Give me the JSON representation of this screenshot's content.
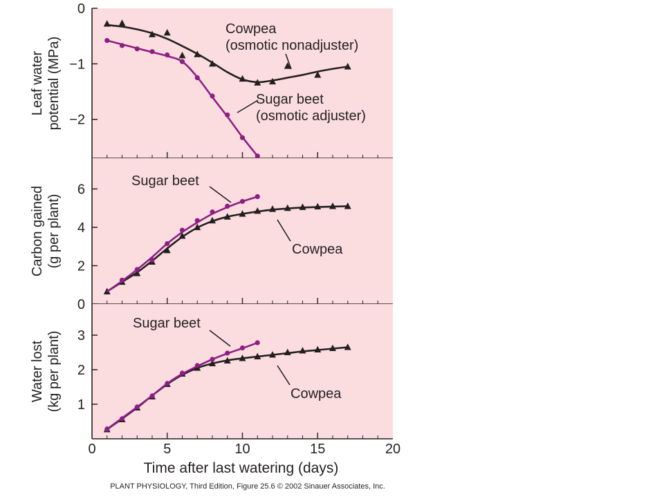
{
  "colors": {
    "panel_bg": "#fbdde0",
    "axis": "#231f20",
    "cowpea": "#231f20",
    "sugar_beet": "#8e1e84"
  },
  "credit": "PLANT PHYSIOLOGY, Third Edition, Figure 25.6  © 2002 Sinauer Associates, Inc.",
  "chart_data": [
    {
      "type": "line",
      "ylabel_lines": [
        "Leaf water",
        "potential (MPa)"
      ],
      "ylim": [
        -2.7,
        0
      ],
      "yticks": [
        0,
        -1,
        -2
      ],
      "xlim": [
        0,
        20
      ],
      "series": [
        {
          "name": "Cowpea (osmotic nonadjuster)",
          "marker": "triangle",
          "x": [
            1,
            2,
            4,
            5,
            6,
            7,
            8,
            10,
            11,
            12,
            13,
            15,
            17
          ],
          "y": [
            -0.28,
            -0.27,
            -0.47,
            -0.44,
            -0.85,
            -0.83,
            -1.0,
            -1.27,
            -1.34,
            -1.32,
            -1.04,
            -1.2,
            -1.05
          ],
          "fit_x": [
            1,
            2,
            3,
            4,
            5,
            6,
            7,
            8,
            9,
            10,
            11,
            12,
            13,
            14,
            15,
            16,
            17
          ],
          "fit_y": [
            -0.3,
            -0.33,
            -0.38,
            -0.45,
            -0.55,
            -0.68,
            -0.82,
            -0.98,
            -1.15,
            -1.28,
            -1.33,
            -1.3,
            -1.25,
            -1.2,
            -1.14,
            -1.09,
            -1.05
          ]
        },
        {
          "name": "Sugar beet (osmotic adjuster)",
          "marker": "circle",
          "x": [
            1,
            2,
            3,
            4,
            5,
            6,
            7,
            8,
            9,
            10,
            11
          ],
          "y": [
            -0.58,
            -0.67,
            -0.73,
            -0.78,
            -0.84,
            -0.96,
            -1.25,
            -1.58,
            -1.92,
            -2.33,
            -2.66
          ],
          "fit_x": [
            1,
            2,
            3,
            4,
            5,
            6,
            7,
            8,
            9,
            10,
            11
          ],
          "fit_y": [
            -0.58,
            -0.65,
            -0.72,
            -0.79,
            -0.86,
            -0.96,
            -1.24,
            -1.6,
            -1.95,
            -2.32,
            -2.66
          ]
        }
      ],
      "annotations": [
        {
          "lines": [
            "Cowpea",
            "(osmotic nonadjuster)"
          ]
        },
        {
          "lines": [
            "Sugar beet",
            "(osmotic adjuster)"
          ]
        }
      ]
    },
    {
      "type": "line",
      "ylabel_lines": [
        "Carbon gained",
        "(g per plant)"
      ],
      "ylim": [
        0,
        7.6
      ],
      "yticks": [
        0,
        2,
        4,
        6
      ],
      "xlim": [
        0,
        20
      ],
      "series": [
        {
          "name": "Cowpea",
          "marker": "triangle",
          "x": [
            1,
            2,
            3,
            4,
            5,
            6,
            7,
            8,
            9,
            10,
            11,
            12,
            13,
            14,
            15,
            16,
            17
          ],
          "y": [
            0.65,
            1.15,
            1.6,
            2.2,
            2.8,
            3.55,
            4.0,
            4.35,
            4.55,
            4.7,
            4.85,
            4.95,
            5.0,
            5.05,
            5.08,
            5.1,
            5.1
          ],
          "fit_x": [
            1,
            2,
            3,
            4,
            5,
            6,
            7,
            8,
            9,
            10,
            11,
            12,
            13,
            14,
            15,
            16,
            17
          ],
          "fit_y": [
            0.65,
            1.15,
            1.65,
            2.25,
            2.9,
            3.5,
            3.98,
            4.32,
            4.55,
            4.7,
            4.82,
            4.92,
            4.98,
            5.03,
            5.06,
            5.08,
            5.1
          ]
        },
        {
          "name": "Sugar beet",
          "marker": "circle",
          "x": [
            2,
            3,
            4,
            5,
            6,
            7,
            8,
            9,
            10,
            11
          ],
          "y": [
            1.25,
            1.8,
            2.3,
            3.15,
            3.85,
            4.35,
            4.8,
            5.1,
            5.35,
            5.6
          ],
          "fit_x": [
            1,
            2,
            3,
            4,
            5,
            6,
            7,
            8,
            9,
            10,
            11
          ],
          "fit_y": [
            0.65,
            1.2,
            1.8,
            2.45,
            3.15,
            3.75,
            4.25,
            4.7,
            5.05,
            5.35,
            5.6
          ]
        }
      ],
      "annotations": [
        {
          "lines": [
            "Sugar beet"
          ]
        },
        {
          "lines": [
            "Cowpea"
          ]
        }
      ]
    },
    {
      "type": "line",
      "ylabel_lines": [
        "Water lost",
        "(kg per plant)"
      ],
      "ylim": [
        0,
        3.9
      ],
      "yticks": [
        1,
        2,
        3
      ],
      "xlim": [
        0,
        20
      ],
      "xticks": [
        0,
        5,
        10,
        15,
        20
      ],
      "xlabel": "Time after last watering (days)",
      "series": [
        {
          "name": "Cowpea",
          "marker": "triangle",
          "x": [
            1,
            2,
            3,
            4,
            5,
            6,
            7,
            8,
            9,
            10,
            11,
            12,
            13,
            14,
            15,
            16,
            17
          ],
          "y": [
            0.27,
            0.56,
            0.9,
            1.22,
            1.58,
            1.88,
            2.05,
            2.18,
            2.26,
            2.33,
            2.38,
            2.43,
            2.5,
            2.55,
            2.58,
            2.62,
            2.65
          ],
          "fit_x": [
            1,
            2,
            3,
            4,
            5,
            6,
            7,
            8,
            9,
            10,
            11,
            12,
            13,
            14,
            15,
            16,
            17
          ],
          "fit_y": [
            0.27,
            0.58,
            0.9,
            1.25,
            1.58,
            1.85,
            2.05,
            2.18,
            2.27,
            2.33,
            2.38,
            2.43,
            2.48,
            2.53,
            2.57,
            2.61,
            2.65
          ]
        },
        {
          "name": "Sugar beet",
          "marker": "circle",
          "x": [
            1,
            2,
            3,
            4,
            5,
            6,
            7,
            8,
            9,
            10,
            11
          ],
          "y": [
            0.28,
            0.58,
            0.92,
            1.24,
            1.6,
            1.9,
            2.12,
            2.3,
            2.48,
            2.63,
            2.78
          ],
          "fit_x": [
            1,
            2,
            3,
            4,
            5,
            6,
            7,
            8,
            9,
            10,
            11
          ],
          "fit_y": [
            0.28,
            0.6,
            0.92,
            1.25,
            1.6,
            1.88,
            2.1,
            2.3,
            2.47,
            2.62,
            2.78
          ]
        }
      ],
      "annotations": [
        {
          "lines": [
            "Sugar beet"
          ]
        },
        {
          "lines": [
            "Cowpea"
          ]
        }
      ]
    }
  ]
}
